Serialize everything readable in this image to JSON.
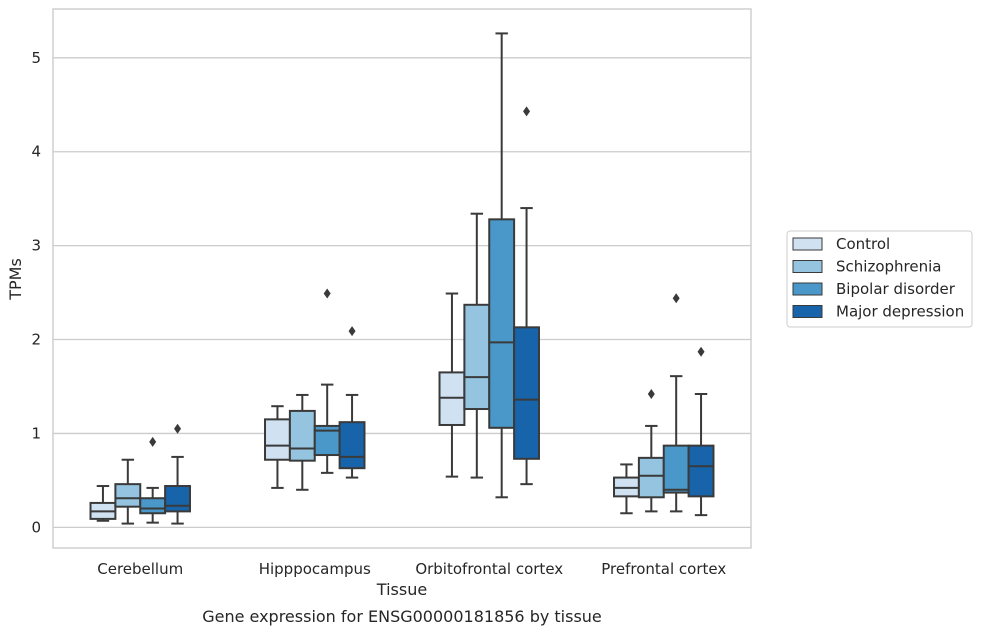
{
  "chart_data": {
    "type": "box",
    "xlabel": "Tissue",
    "ylabel": "TPMs",
    "caption": "Gene expression for ENSG00000181856 by tissue",
    "ylim": [
      -0.22,
      5.52
    ],
    "yticks": [
      0,
      1,
      2,
      3,
      4,
      5
    ],
    "grid": "horizontal",
    "legend_position": "right",
    "categories": [
      "Cerebellum",
      "Hipppocampus",
      "Orbitofrontal cortex",
      "Prefrontal cortex"
    ],
    "series": [
      {
        "name": "Control",
        "color": "#d0e1f2",
        "boxes": [
          {
            "whislo": 0.07,
            "q1": 0.09,
            "med": 0.17,
            "q3": 0.26,
            "whishi": 0.44,
            "fliers": []
          },
          {
            "whislo": 0.42,
            "q1": 0.72,
            "med": 0.87,
            "q3": 1.15,
            "whishi": 1.29,
            "fliers": []
          },
          {
            "whislo": 0.54,
            "q1": 1.09,
            "med": 1.38,
            "q3": 1.65,
            "whishi": 2.49,
            "fliers": []
          },
          {
            "whislo": 0.15,
            "q1": 0.33,
            "med": 0.42,
            "q3": 0.53,
            "whishi": 0.67,
            "fliers": []
          }
        ]
      },
      {
        "name": "Schizophrenia",
        "color": "#94c4df",
        "boxes": [
          {
            "whislo": 0.04,
            "q1": 0.22,
            "med": 0.31,
            "q3": 0.46,
            "whishi": 0.72,
            "fliers": []
          },
          {
            "whislo": 0.4,
            "q1": 0.71,
            "med": 0.84,
            "q3": 1.24,
            "whishi": 1.41,
            "fliers": []
          },
          {
            "whislo": 0.53,
            "q1": 1.26,
            "med": 1.6,
            "q3": 2.37,
            "whishi": 3.34,
            "fliers": []
          },
          {
            "whislo": 0.17,
            "q1": 0.32,
            "med": 0.55,
            "q3": 0.74,
            "whishi": 1.08,
            "fliers": [
              1.42
            ]
          }
        ]
      },
      {
        "name": "Bipolar disorder",
        "color": "#4a98c9",
        "boxes": [
          {
            "whislo": 0.05,
            "q1": 0.15,
            "med": 0.2,
            "q3": 0.31,
            "whishi": 0.42,
            "fliers": [
              0.91
            ]
          },
          {
            "whislo": 0.58,
            "q1": 0.77,
            "med": 1.03,
            "q3": 1.08,
            "whishi": 1.52,
            "fliers": [
              2.49
            ]
          },
          {
            "whislo": 0.32,
            "q1": 1.06,
            "med": 1.97,
            "q3": 3.28,
            "whishi": 5.26,
            "fliers": []
          },
          {
            "whislo": 0.17,
            "q1": 0.37,
            "med": 0.4,
            "q3": 0.87,
            "whishi": 1.61,
            "fliers": [
              2.44
            ]
          }
        ]
      },
      {
        "name": "Major depression",
        "color": "#1764ab",
        "boxes": [
          {
            "whislo": 0.04,
            "q1": 0.17,
            "med": 0.23,
            "q3": 0.44,
            "whishi": 0.75,
            "fliers": [
              1.05
            ]
          },
          {
            "whislo": 0.53,
            "q1": 0.63,
            "med": 0.75,
            "q3": 1.12,
            "whishi": 1.41,
            "fliers": [
              2.09
            ]
          },
          {
            "whislo": 0.46,
            "q1": 0.73,
            "med": 1.36,
            "q3": 2.13,
            "whishi": 3.4,
            "fliers": [
              4.43
            ]
          },
          {
            "whislo": 0.13,
            "q1": 0.33,
            "med": 0.65,
            "q3": 0.87,
            "whishi": 1.42,
            "fliers": [
              1.87
            ]
          }
        ]
      }
    ]
  }
}
